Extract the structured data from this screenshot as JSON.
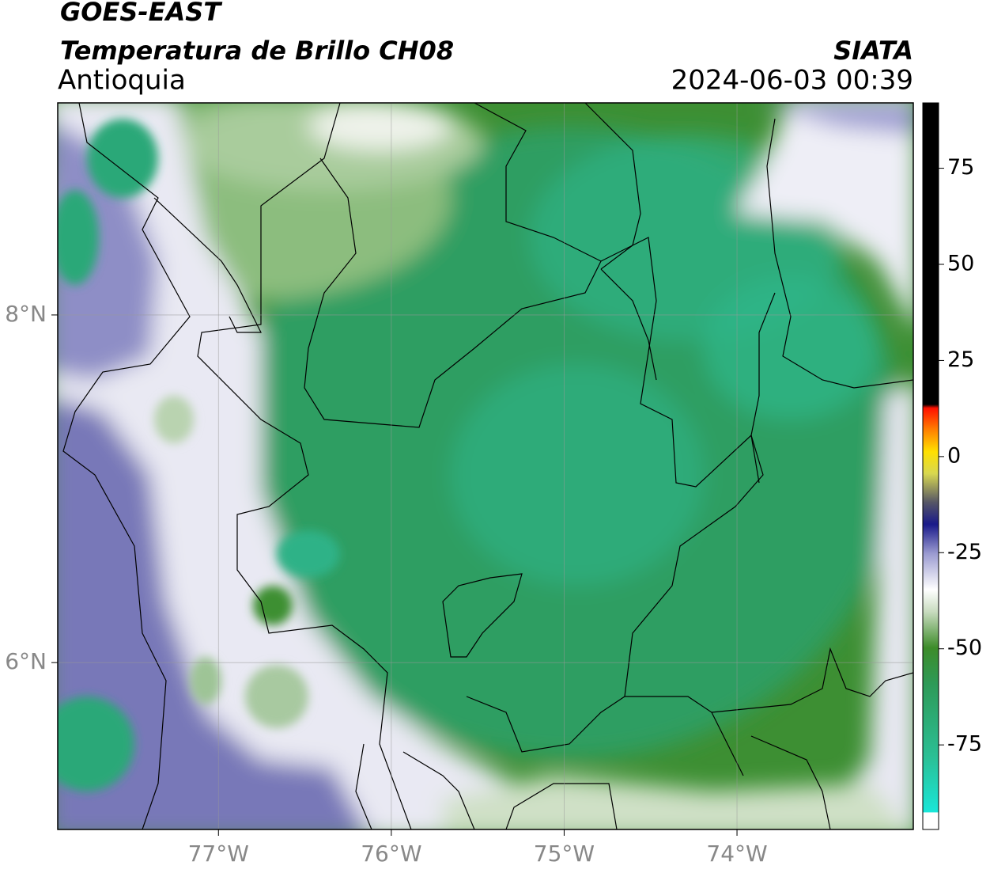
{
  "header": {
    "satellite": "GOES-EAST",
    "product": "Temperatura de Brillo CH08",
    "region": "Antioquia",
    "source": "SIATA",
    "datetime": "2024-06-03 00:39"
  },
  "map": {
    "xlim": [
      -77.93,
      -72.98
    ],
    "ylim": [
      5.04,
      9.22
    ],
    "xticks": [
      {
        "value": -77,
        "label": "77°W"
      },
      {
        "value": -76,
        "label": "76°W"
      },
      {
        "value": -75,
        "label": "75°W"
      },
      {
        "value": -74,
        "label": "74°W"
      }
    ],
    "yticks": [
      {
        "value": 6,
        "label": "6°N"
      },
      {
        "value": 8,
        "label": "8°N"
      }
    ],
    "grid": true
  },
  "colorbar": {
    "range": [
      -97,
      92
    ],
    "ticks": [
      -75,
      -50,
      -25,
      0,
      25,
      50,
      75
    ]
  }
}
